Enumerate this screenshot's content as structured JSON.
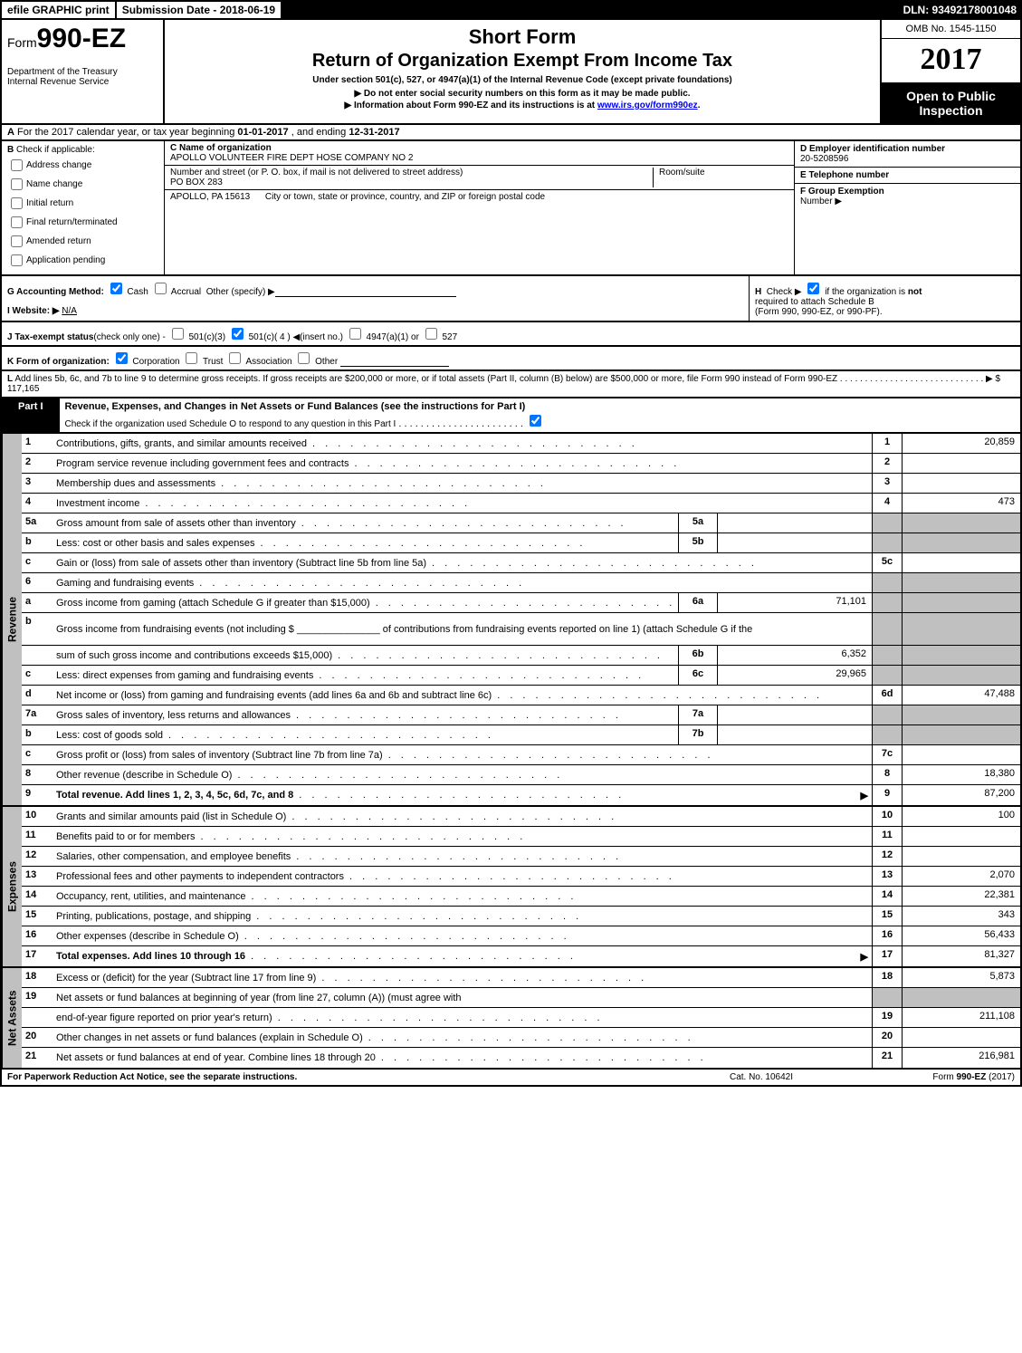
{
  "topbar": {
    "efile": "efile GRAPHIC print",
    "submission": "Submission Date - 2018-06-19",
    "dln": "DLN: 93492178001048"
  },
  "header": {
    "form_label": "Form",
    "form_number": "990-EZ",
    "dept1": "Department of the Treasury",
    "dept2": "Internal Revenue Service",
    "short_form": "Short Form",
    "title": "Return of Organization Exempt From Income Tax",
    "under": "Under section 501(c), 527, or 4947(a)(1) of the Internal Revenue Code (except private foundations)",
    "arrow1": "▶ Do not enter social security numbers on this form as it may be made public.",
    "arrow2_pre": "▶ Information about Form 990-EZ and its instructions is at ",
    "arrow2_link": "www.irs.gov/form990ez",
    "arrow2_post": ".",
    "omb": "OMB No. 1545-1150",
    "year": "2017",
    "open1": "Open to Public",
    "open2": "Inspection"
  },
  "rowA": {
    "label": "A",
    "text1": "For the 2017 calendar year, or tax year beginning ",
    "begin": "01-01-2017",
    "text2": ", and ending ",
    "end": "12-31-2017"
  },
  "colB": {
    "label": "B",
    "check_label": "Check if applicable:",
    "opts": [
      "Address change",
      "Name change",
      "Initial return",
      "Final return/terminated",
      "Amended return",
      "Application pending"
    ]
  },
  "colC": {
    "name_label": "C Name of organization",
    "name": "APOLLO VOLUNTEER FIRE DEPT HOSE COMPANY NO 2",
    "addr_label": "Number and street (or P. O. box, if mail is not delivered to street address)",
    "addr": "PO BOX 283",
    "room_label": "Room/suite",
    "city_label": "City or town, state or province, country, and ZIP or foreign postal code",
    "city": "APOLLO, PA  15613"
  },
  "colD": {
    "d_label": "D Employer identification number",
    "d_val": "20-5208596",
    "e_label": "E Telephone number",
    "f_label": "F Group Exemption",
    "f_label2": "Number    ▶"
  },
  "rowG": {
    "g": "G Accounting Method:",
    "cash": "Cash",
    "accrual": "Accrual",
    "other": "Other (specify) ▶",
    "website_label": "I Website: ▶",
    "website": "N/A"
  },
  "rowH": {
    "h": "H",
    "text1": "Check ▶",
    "text2": "if the organization is ",
    "not": "not",
    "text3": "required to attach Schedule B",
    "text4": "(Form 990, 990-EZ, or 990-PF)."
  },
  "rowJ": {
    "j": "J Tax-exempt status",
    "note": "(check only one) -",
    "o1": "501(c)(3)",
    "o2": "501(c)( 4 ) ◀(insert no.)",
    "o3": "4947(a)(1) or",
    "o4": "527"
  },
  "rowK": {
    "k": "K Form of organization:",
    "opts": [
      "Corporation",
      "Trust",
      "Association",
      "Other"
    ]
  },
  "rowL": {
    "l": "L",
    "text": "Add lines 5b, 6c, and 7b to line 9 to determine gross receipts. If gross receipts are $200,000 or more, or if total assets (Part II, column (B) below) are $500,000 or more, file Form 990 instead of Form 990-EZ",
    "amt": "▶ $ 117,165"
  },
  "part1": {
    "label": "Part I",
    "desc": "Revenue, Expenses, and Changes in Net Assets or Fund Balances (see the instructions for Part I)",
    "check": "Check if the organization used Schedule O to respond to any question in this Part I"
  },
  "sections": {
    "revenue": "Revenue",
    "expenses": "Expenses",
    "netassets": "Net Assets"
  },
  "lines": [
    {
      "num": "1",
      "desc": "Contributions, gifts, grants, and similar amounts received",
      "line": "1",
      "val": "20,859"
    },
    {
      "num": "2",
      "desc": "Program service revenue including government fees and contracts",
      "line": "2",
      "val": ""
    },
    {
      "num": "3",
      "desc": "Membership dues and assessments",
      "line": "3",
      "val": ""
    },
    {
      "num": "4",
      "desc": "Investment income",
      "line": "4",
      "val": "473"
    },
    {
      "num": "5a",
      "desc": "Gross amount from sale of assets other than inventory",
      "sub": "5a",
      "subval": "",
      "gray": true
    },
    {
      "num": "b",
      "desc": "Less: cost or other basis and sales expenses",
      "sub": "5b",
      "subval": "",
      "gray": true
    },
    {
      "num": "c",
      "desc": "Gain or (loss) from sale of assets other than inventory (Subtract line 5b from line 5a)",
      "line": "5c",
      "val": ""
    },
    {
      "num": "6",
      "desc": "Gaming and fundraising events",
      "gray_all": true
    },
    {
      "num": "a",
      "desc": "Gross income from gaming (attach Schedule G if greater than $15,000)",
      "sub": "6a",
      "subval": "71,101",
      "gray": true
    },
    {
      "num": "b",
      "desc": "Gross income from fundraising events (not including $ _______________ of contributions from fundraising events reported on line 1) (attach Schedule G if the",
      "nolines": true,
      "gray": true,
      "tall": true
    },
    {
      "num": "",
      "desc": "sum of such gross income and contributions exceeds $15,000)",
      "sub": "6b",
      "subval": "6,352",
      "gray": true
    },
    {
      "num": "c",
      "desc": "Less: direct expenses from gaming and fundraising events",
      "sub": "6c",
      "subval": "29,965",
      "gray": true
    },
    {
      "num": "d",
      "desc": "Net income or (loss) from gaming and fundraising events (add lines 6a and 6b and subtract line 6c)",
      "line": "6d",
      "val": "47,488"
    },
    {
      "num": "7a",
      "desc": "Gross sales of inventory, less returns and allowances",
      "sub": "7a",
      "subval": "",
      "gray": true
    },
    {
      "num": "b",
      "desc": "Less: cost of goods sold",
      "sub": "7b",
      "subval": "",
      "gray": true
    },
    {
      "num": "c",
      "desc": "Gross profit or (loss) from sales of inventory (Subtract line 7b from line 7a)",
      "line": "7c",
      "val": ""
    },
    {
      "num": "8",
      "desc": "Other revenue (describe in Schedule O)",
      "line": "8",
      "val": "18,380"
    },
    {
      "num": "9",
      "desc": "Total revenue. Add lines 1, 2, 3, 4, 5c, 6d, 7c, and 8",
      "line": "9",
      "val": "87,200",
      "bold": true,
      "arrow": true
    }
  ],
  "exp_lines": [
    {
      "num": "10",
      "desc": "Grants and similar amounts paid (list in Schedule O)",
      "line": "10",
      "val": "100"
    },
    {
      "num": "11",
      "desc": "Benefits paid to or for members",
      "line": "11",
      "val": ""
    },
    {
      "num": "12",
      "desc": "Salaries, other compensation, and employee benefits",
      "line": "12",
      "val": ""
    },
    {
      "num": "13",
      "desc": "Professional fees and other payments to independent contractors",
      "line": "13",
      "val": "2,070"
    },
    {
      "num": "14",
      "desc": "Occupancy, rent, utilities, and maintenance",
      "line": "14",
      "val": "22,381"
    },
    {
      "num": "15",
      "desc": "Printing, publications, postage, and shipping",
      "line": "15",
      "val": "343"
    },
    {
      "num": "16",
      "desc": "Other expenses (describe in Schedule O)",
      "line": "16",
      "val": "56,433"
    },
    {
      "num": "17",
      "desc": "Total expenses. Add lines 10 through 16",
      "line": "17",
      "val": "81,327",
      "bold": true,
      "arrow": true
    }
  ],
  "na_lines": [
    {
      "num": "18",
      "desc": "Excess or (deficit) for the year (Subtract line 17 from line 9)",
      "line": "18",
      "val": "5,873"
    },
    {
      "num": "19",
      "desc": "Net assets or fund balances at beginning of year (from line 27, column (A)) (must agree with",
      "nolines": true,
      "gray": true,
      "tall": false
    },
    {
      "num": "",
      "desc": "end-of-year figure reported on prior year's return)",
      "line": "19",
      "val": "211,108"
    },
    {
      "num": "20",
      "desc": "Other changes in net assets or fund balances (explain in Schedule O)",
      "line": "20",
      "val": ""
    },
    {
      "num": "21",
      "desc": "Net assets or fund balances at end of year. Combine lines 18 through 20",
      "line": "21",
      "val": "216,981"
    }
  ],
  "footer": {
    "left": "For Paperwork Reduction Act Notice, see the separate instructions.",
    "mid": "Cat. No. 10642I",
    "right": "Form 990-EZ (2017)"
  }
}
